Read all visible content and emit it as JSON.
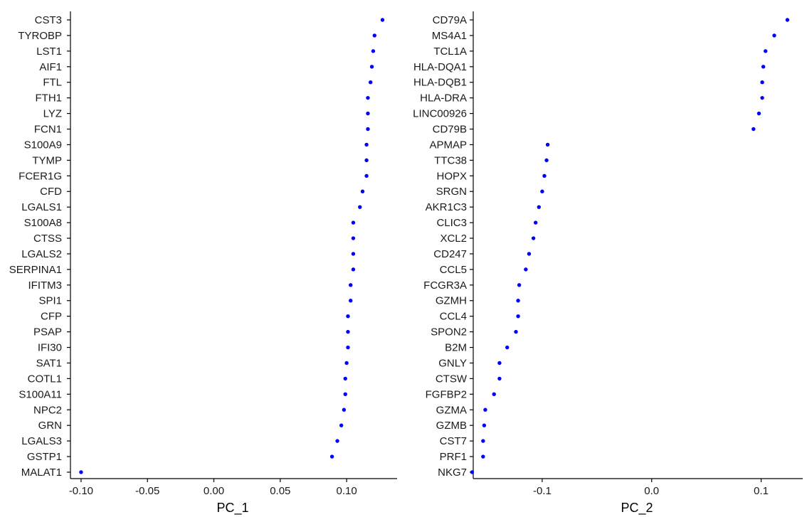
{
  "chart_data": [
    {
      "type": "scatter",
      "xlabel": "PC_1",
      "ylabel": "",
      "xlim": [
        -0.108,
        0.138
      ],
      "xticks": [
        -0.1,
        -0.05,
        0.0,
        0.05,
        0.1
      ],
      "xtick_labels": [
        "-0.10",
        "-0.05",
        "0.00",
        "0.05",
        "0.10"
      ],
      "grid": false,
      "point_color": "#0000ff",
      "categories": [
        "CST3",
        "TYROBP",
        "LST1",
        "AIF1",
        "FTL",
        "FTH1",
        "LYZ",
        "FCN1",
        "S100A9",
        "TYMP",
        "FCER1G",
        "CFD",
        "LGALS1",
        "S100A8",
        "CTSS",
        "LGALS2",
        "SERPINA1",
        "IFITM3",
        "SPI1",
        "CFP",
        "PSAP",
        "IFI30",
        "SAT1",
        "COTL1",
        "S100A11",
        "NPC2",
        "GRN",
        "LGALS3",
        "GSTP1",
        "MALAT1"
      ],
      "values": [
        0.127,
        0.121,
        0.12,
        0.119,
        0.118,
        0.116,
        0.116,
        0.116,
        0.115,
        0.115,
        0.115,
        0.112,
        0.11,
        0.105,
        0.105,
        0.105,
        0.105,
        0.103,
        0.103,
        0.101,
        0.101,
        0.101,
        0.1,
        0.099,
        0.099,
        0.098,
        0.096,
        0.093,
        0.089,
        -0.1
      ]
    },
    {
      "type": "scatter",
      "xlabel": "PC_2",
      "ylabel": "",
      "xlim": [
        -0.163,
        0.138
      ],
      "xticks": [
        -0.1,
        0.0,
        0.1
      ],
      "xtick_labels": [
        "-0.1",
        "0.0",
        "0.1"
      ],
      "grid": false,
      "point_color": "#0000ff",
      "categories": [
        "CD79A",
        "MS4A1",
        "TCL1A",
        "HLA-DQA1",
        "HLA-DQB1",
        "HLA-DRA",
        "LINC00926",
        "CD79B",
        "APMAP",
        "TTC38",
        "HOPX",
        "SRGN",
        "AKR1C3",
        "CLIC3",
        "XCL2",
        "CD247",
        "CCL5",
        "FCGR3A",
        "GZMH",
        "CCL4",
        "SPON2",
        "B2M",
        "GNLY",
        "CTSW",
        "FGFBP2",
        "GZMA",
        "GZMB",
        "CST7",
        "PRF1",
        "NKG7"
      ],
      "values": [
        0.124,
        0.112,
        0.104,
        0.102,
        0.101,
        0.101,
        0.098,
        0.093,
        -0.095,
        -0.096,
        -0.098,
        -0.1,
        -0.103,
        -0.106,
        -0.108,
        -0.112,
        -0.115,
        -0.121,
        -0.122,
        -0.122,
        -0.124,
        -0.132,
        -0.139,
        -0.139,
        -0.144,
        -0.152,
        -0.153,
        -0.154,
        -0.154,
        -0.164
      ]
    }
  ]
}
